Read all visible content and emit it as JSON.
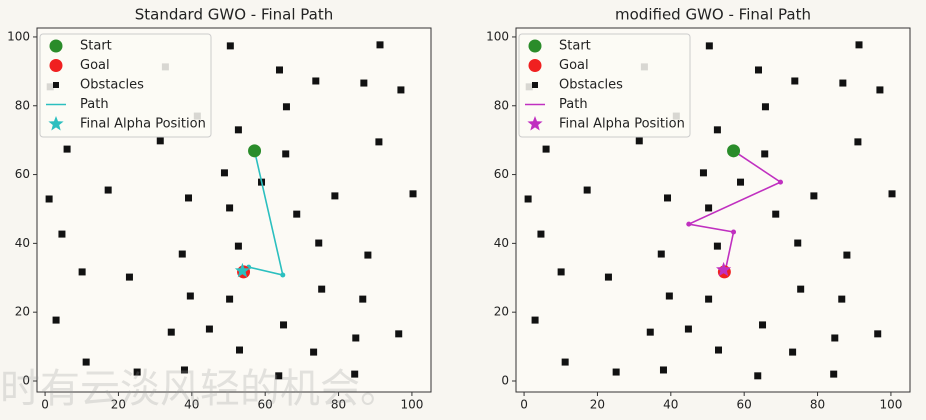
{
  "chart_data": [
    {
      "type": "scatter",
      "title": "Standard GWO - Final Path",
      "xlim": [
        -2.2,
        105.2
      ],
      "ylim": [
        -3.2,
        102.6
      ],
      "xticks": [
        0,
        20,
        40,
        60,
        80,
        100
      ],
      "yticks": [
        0,
        20,
        40,
        60,
        80,
        100
      ],
      "legend": "upper left",
      "series": [
        {
          "name": "Start",
          "color": "#2a8c2a",
          "marker": "circle",
          "x": [
            57.1
          ],
          "values": [
            66.9
          ]
        },
        {
          "name": "Goal",
          "color": "#f02020",
          "marker": "circle",
          "x": [
            54.1
          ],
          "values": [
            31.7
          ]
        },
        {
          "name": "Obstacles",
          "color": "#111111",
          "marker": "square",
          "x": [
            50.5,
            91.3,
            32.8,
            63.9,
            73.8,
            86.9,
            97.0,
            1.4,
            65.8,
            41.5,
            52.7,
            31.4,
            91.0,
            6.0,
            65.6,
            48.9,
            59.0,
            17.2,
            39.1,
            1.1,
            79.0,
            100.3,
            50.3,
            68.6,
            4.6,
            52.7,
            74.6,
            37.4,
            88.0,
            10.1,
            23.0,
            75.4,
            39.6,
            50.3,
            86.6,
            3.0,
            65.0,
            44.8,
            34.4,
            96.4,
            84.7,
            53.0,
            73.2,
            11.2,
            25.1,
            38.0,
            63.7,
            84.4
          ],
          "values": [
            97.4,
            97.7,
            91.3,
            90.4,
            87.2,
            86.6,
            84.6,
            85.5,
            79.7,
            77.0,
            73.0,
            69.8,
            69.5,
            67.4,
            66.0,
            60.5,
            57.8,
            55.5,
            53.2,
            52.9,
            53.8,
            54.4,
            50.3,
            48.5,
            42.7,
            39.2,
            40.1,
            36.9,
            36.6,
            31.7,
            30.2,
            26.7,
            24.7,
            23.8,
            23.8,
            17.7,
            16.3,
            15.1,
            14.2,
            13.7,
            12.5,
            9.0,
            8.4,
            5.5,
            2.6,
            3.2,
            1.5,
            2.0
          ]
        },
        {
          "name": "Path",
          "color": "#2bbfbf",
          "marker": "line",
          "x": [
            57.1,
            64.8,
            55.5,
            54.1
          ],
          "values": [
            66.9,
            30.8,
            33.1,
            31.7
          ]
        },
        {
          "name": "Final Alpha Position",
          "color": "#2bbfbf",
          "marker": "star",
          "x": [
            53.8
          ],
          "values": [
            32.0
          ]
        }
      ]
    },
    {
      "type": "scatter",
      "title": "modified GWO - Final Path",
      "xlim": [
        -2.2,
        105.2
      ],
      "ylim": [
        -3.2,
        102.6
      ],
      "xticks": [
        0,
        20,
        40,
        60,
        80,
        100
      ],
      "yticks": [
        0,
        20,
        40,
        60,
        80,
        100
      ],
      "legend": "upper left",
      "series": [
        {
          "name": "Start",
          "color": "#2a8c2a",
          "marker": "circle",
          "x": [
            57.1
          ],
          "values": [
            66.9
          ]
        },
        {
          "name": "Goal",
          "color": "#f02020",
          "marker": "circle",
          "x": [
            54.6
          ],
          "values": [
            31.7
          ]
        },
        {
          "name": "Obstacles",
          "color": "#111111",
          "marker": "square",
          "x": [
            50.5,
            91.3,
            32.8,
            63.9,
            73.8,
            86.9,
            97.0,
            1.4,
            65.8,
            41.5,
            52.7,
            31.4,
            91.0,
            6.0,
            65.6,
            48.9,
            59.0,
            17.2,
            39.1,
            1.1,
            79.0,
            100.3,
            50.3,
            68.6,
            4.6,
            52.7,
            74.6,
            37.4,
            88.0,
            10.1,
            23.0,
            75.4,
            39.6,
            50.3,
            86.6,
            3.0,
            65.0,
            44.8,
            34.4,
            96.4,
            84.7,
            53.0,
            73.2,
            11.2,
            25.1,
            38.0,
            63.7,
            84.4
          ],
          "values": [
            97.4,
            97.7,
            91.3,
            90.4,
            87.2,
            86.6,
            84.6,
            85.5,
            79.7,
            77.0,
            73.0,
            69.8,
            69.5,
            67.4,
            66.0,
            60.5,
            57.8,
            55.5,
            53.2,
            52.9,
            53.8,
            54.4,
            50.3,
            48.5,
            42.7,
            39.2,
            40.1,
            36.9,
            36.6,
            31.7,
            30.2,
            26.7,
            24.7,
            23.8,
            23.8,
            17.7,
            16.3,
            15.1,
            14.2,
            13.7,
            12.5,
            9.0,
            8.4,
            5.5,
            2.6,
            3.2,
            1.5,
            2.0
          ]
        },
        {
          "name": "Path",
          "color": "#c030c0",
          "marker": "line",
          "x": [
            57.1,
            69.9,
            44.9,
            57.1,
            54.6
          ],
          "values": [
            66.9,
            57.8,
            45.6,
            43.3,
            30.8
          ]
        },
        {
          "name": "Final Alpha Position",
          "color": "#c030c0",
          "marker": "star",
          "x": [
            54.4
          ],
          "values": [
            32.3
          ]
        }
      ]
    }
  ],
  "watermark": "时有云淡风轻的机会。"
}
